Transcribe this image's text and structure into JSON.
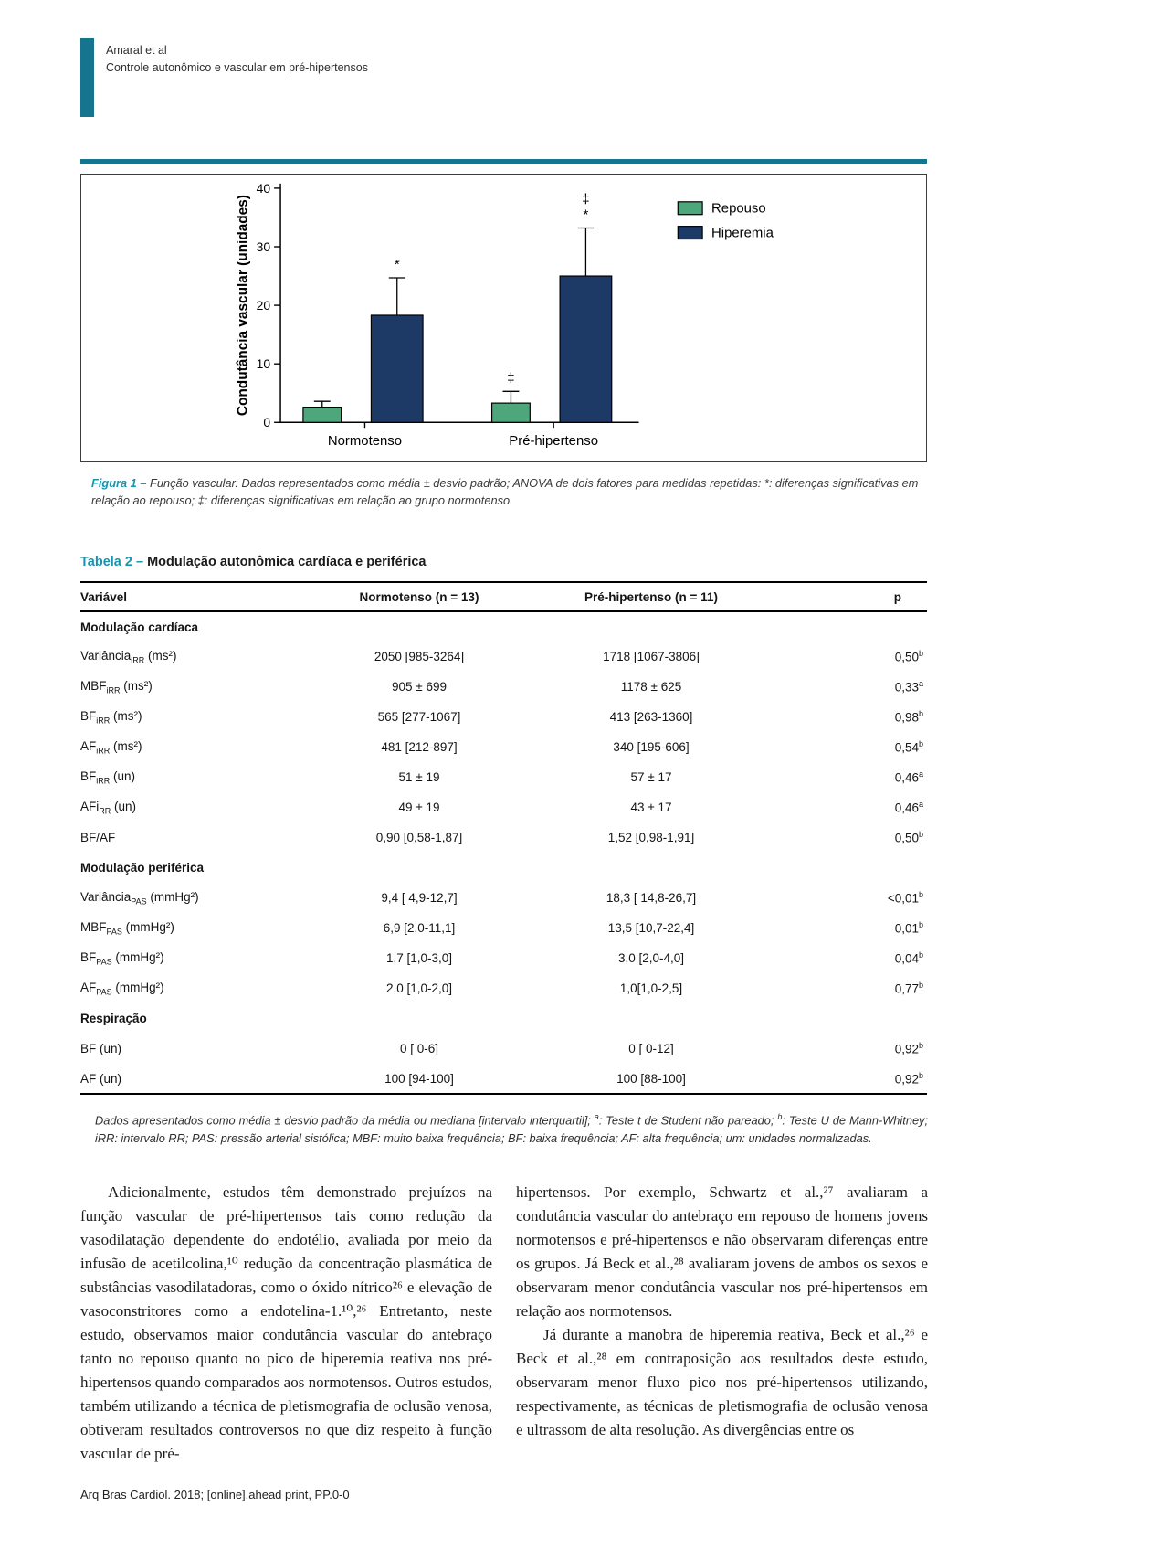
{
  "accent": {
    "teal_dark": "#15748e",
    "teal_label": "#1b93ad",
    "bar_green": "#4EA77B",
    "bar_navy": "#1D3A67"
  },
  "header": {
    "authors": "Amaral et al",
    "running_title": "Controle autonômico e vascular em pré-hipertensos"
  },
  "chart_data": {
    "type": "bar",
    "categories": [
      "Normotenso",
      "Pré-hipertenso"
    ],
    "series": [
      {
        "name": "Repouso",
        "color": "#4EA77B",
        "values": [
          2.6,
          3.3
        ],
        "errors": [
          1.0,
          2.0
        ],
        "annotations": [
          [],
          [
            "‡"
          ]
        ]
      },
      {
        "name": "Hiperemia",
        "color": "#1D3A67",
        "values": [
          18.3,
          25.0
        ],
        "errors": [
          6.4,
          8.2
        ],
        "annotations": [
          [
            "*"
          ],
          [
            "‡",
            "*"
          ]
        ]
      }
    ],
    "ylabel": "Condutância vascular (unidades)",
    "xlabel": "",
    "ylim": [
      0,
      40
    ],
    "yticks": [
      0,
      10,
      20,
      30,
      40
    ],
    "grid": false,
    "legend": [
      "Repouso",
      "Hiperemia"
    ],
    "legend_position": "inside-right"
  },
  "figure": {
    "caption_label": "Figura 1 –",
    "caption_text": "Função vascular. Dados representados como média ± desvio padrão; ANOVA de dois fatores para medidas repetidas: *: diferenças significativas em relação ao repouso; ‡: diferenças significativas em relação ao grupo normotenso."
  },
  "table": {
    "title_label": "Tabela 2 –",
    "title_text": "Modulação autonômica cardíaca e periférica",
    "columns": [
      "Variável",
      "Normotenso (n = 13)",
      "Pré-hipertenso (n = 11)",
      "p"
    ],
    "sections": [
      {
        "label": "Modulação cardíaca",
        "rows": [
          {
            "variable": {
              "base": "Variância",
              "sub": "iRR",
              "unit": " (ms²)"
            },
            "normotenso": "2050 [985-3264]",
            "prehipertenso": "1718 [1067-3806]",
            "p": {
              "value": "0,50",
              "sup": "b"
            }
          },
          {
            "variable": {
              "base": "MBF",
              "sub": "iRR",
              "unit": " (ms²)"
            },
            "normotenso": "905 ± 699",
            "prehipertenso": "1178 ± 625",
            "p": {
              "value": "0,33",
              "sup": "a"
            }
          },
          {
            "variable": {
              "base": "BF",
              "sub": "iRR",
              "unit": " (ms²)"
            },
            "normotenso": "565 [277-1067]",
            "prehipertenso": "413 [263-1360]",
            "p": {
              "value": "0,98",
              "sup": "b"
            }
          },
          {
            "variable": {
              "base": "AF",
              "sub": "iRR",
              "unit": " (ms²)"
            },
            "normotenso": "481 [212-897]",
            "prehipertenso": "340 [195-606]",
            "p": {
              "value": "0,54",
              "sup": "b"
            }
          },
          {
            "variable": {
              "base": "BF",
              "sub": "iRR",
              "unit": " (un)"
            },
            "normotenso": "51 ± 19",
            "prehipertenso": "57 ± 17",
            "p": {
              "value": "0,46",
              "sup": "a"
            }
          },
          {
            "variable": {
              "base": "AFi",
              "sub": "RR",
              "unit": " (un)"
            },
            "normotenso": "49 ± 19",
            "prehipertenso": "43 ± 17",
            "p": {
              "value": "0,46",
              "sup": "a"
            }
          },
          {
            "variable": {
              "base": "BF/AF",
              "sub": "",
              "unit": ""
            },
            "normotenso": "0,90 [0,58-1,87]",
            "prehipertenso": "1,52 [0,98-1,91]",
            "p": {
              "value": "0,50",
              "sup": "b"
            }
          }
        ]
      },
      {
        "label": "Modulação periférica",
        "rows": [
          {
            "variable": {
              "base": "Variância",
              "sub": "PAS",
              "unit": " (mmHg²)"
            },
            "normotenso": "9,4 [ 4,9-12,7]",
            "prehipertenso": "18,3 [ 14,8-26,7]",
            "p": {
              "value": "<0,01",
              "sup": "b"
            }
          },
          {
            "variable": {
              "base": "MBF",
              "sub": "PAS",
              "unit": " (mmHg²)"
            },
            "normotenso": "6,9 [2,0-11,1]",
            "prehipertenso": "13,5 [10,7-22,4]",
            "p": {
              "value": "0,01",
              "sup": "b"
            }
          },
          {
            "variable": {
              "base": "BF",
              "sub": "PAS",
              "unit": " (mmHg²)"
            },
            "normotenso": "1,7 [1,0-3,0]",
            "prehipertenso": "3,0 [2,0-4,0]",
            "p": {
              "value": "0,04",
              "sup": "b"
            }
          },
          {
            "variable": {
              "base": "AF",
              "sub": "PAS",
              "unit": " (mmHg²)"
            },
            "normotenso": "2,0 [1,0-2,0]",
            "prehipertenso": "1,0[1,0-2,5]",
            "p": {
              "value": "0,77",
              "sup": "b"
            }
          }
        ]
      },
      {
        "label": "Respiração",
        "rows": [
          {
            "variable": {
              "base": "BF (un)",
              "sub": "",
              "unit": ""
            },
            "normotenso": "0 [ 0-6]",
            "prehipertenso": "0 [ 0-12]",
            "p": {
              "value": "0,92",
              "sup": "b"
            }
          },
          {
            "variable": {
              "base": "AF (un)",
              "sub": "",
              "unit": ""
            },
            "normotenso": "100 [94-100]",
            "prehipertenso": "100 [88-100]",
            "p": {
              "value": "0,92",
              "sup": "b"
            }
          }
        ]
      }
    ],
    "footnote_segments": [
      {
        "t": "Dados apresentados como média ± desvio padrão da média ou mediana [intervalo interquartil]; "
      },
      {
        "sup": "a"
      },
      {
        "t": ": Teste t de Student não pareado; "
      },
      {
        "sup": "b"
      },
      {
        "t": ": Teste U de Mann-Whitney; iRR: intervalo RR; PAS: pressão arterial sistólica; MBF: muito baixa frequência; BF: baixa frequência; AF: alta frequência; um: unidades normalizadas."
      }
    ]
  },
  "body": {
    "left_column": [
      {
        "indent": true,
        "text": "Adicionalmente, estudos têm demonstrado prejuízos na função vascular de pré-hipertensos tais como redução da vasodilatação dependente do endotélio, avaliada por meio da infusão de acetilcolina,¹⁰ redução da concentração plasmática de substâncias vasodilatadoras, como o óxido nítrico²⁶ e elevação de vasoconstritores como a endotelina-1.¹⁰,²⁶ Entretanto, neste estudo, observamos maior condutância vascular do antebraço tanto no repouso quanto no pico de hiperemia reativa nos pré-hipertensos quando comparados aos normotensos. Outros estudos, também utilizando a técnica de pletismografia de oclusão venosa, obtiveram resultados controversos no que diz respeito à função vascular de pré-"
      }
    ],
    "right_column": [
      {
        "indent": false,
        "text": "hipertensos. Por exemplo, Schwartz et al.,²⁷ avaliaram a condutância vascular do antebraço em repouso de homens jovens normotensos e pré-hipertensos e não observaram diferenças entre os grupos. Já Beck et al.,²⁸ avaliaram jovens de ambos os sexos e observaram menor condutância vascular nos pré-hipertensos em relação aos normotensos."
      },
      {
        "indent": true,
        "text": "Já durante a manobra de hiperemia reativa, Beck et al.,²⁶ e Beck et al.,²⁸ em contraposição aos resultados deste estudo, observaram menor fluxo pico nos pré-hipertensos utilizando, respectivamente, as técnicas de pletismografia de oclusão venosa e ultrassom de alta resolução. As divergências entre os"
      }
    ]
  },
  "footer": {
    "citation": "Arq Bras Cardiol. 2018; [online].ahead print, PP.0-0"
  }
}
